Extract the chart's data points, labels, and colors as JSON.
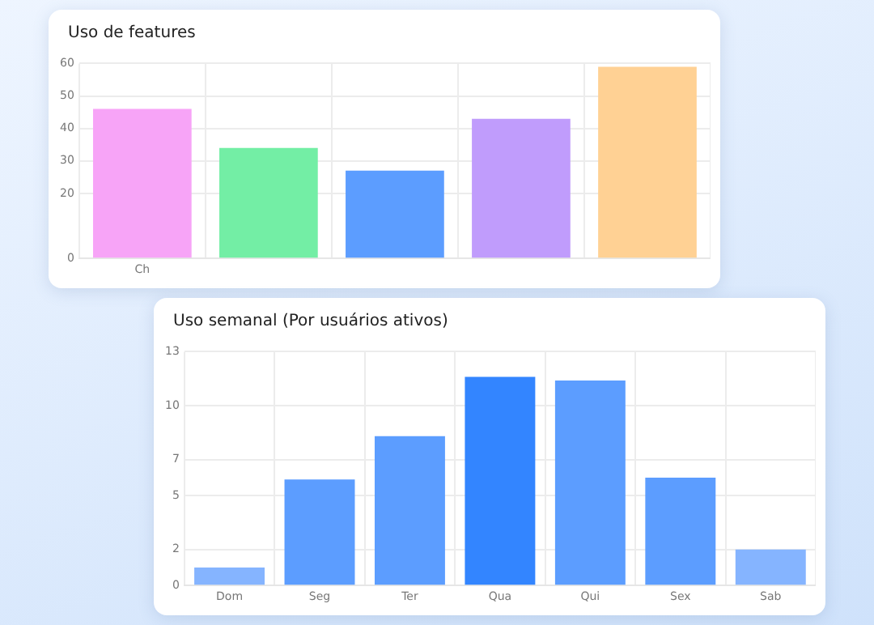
{
  "chart_data": [
    {
      "type": "bar",
      "title": "Uso de features",
      "categories": [
        "Ch",
        null,
        null,
        null,
        null
      ],
      "values": [
        46,
        34,
        27,
        43,
        59
      ],
      "colors": [
        "#f7a4f7",
        "#73eea5",
        "#5c9dff",
        "#c09cfc",
        "#ffd194"
      ],
      "ylim": [
        0,
        60
      ],
      "yticks": [
        0,
        20,
        30,
        40,
        50,
        60
      ],
      "grid": true
    },
    {
      "type": "bar",
      "title": "Uso semanal (Por usuários ativos)",
      "categories": [
        "Dom",
        "Seg",
        "Ter",
        "Qua",
        "Qui",
        "Sex",
        "Sab"
      ],
      "values": [
        1.0,
        5.9,
        8.3,
        11.6,
        11.4,
        6.0,
        2.0
      ],
      "colors": [
        "#85b4ff",
        "#5c9dff",
        "#5c9dff",
        "#3385ff",
        "#5c9dff",
        "#5c9dff",
        "#85b4ff"
      ],
      "ylim": [
        0,
        13
      ],
      "yticks": [
        0,
        2,
        5,
        7,
        10,
        13
      ],
      "grid": true
    }
  ]
}
